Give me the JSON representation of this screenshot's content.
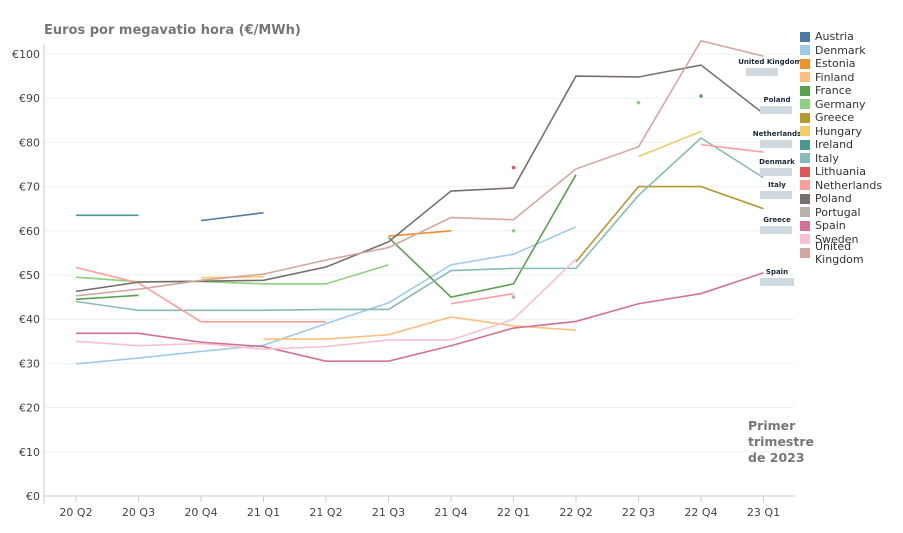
{
  "chart_data": {
    "type": "line",
    "title": "Euros por megavatio hora (€/MWh)",
    "xlabel": "",
    "ylabel": "",
    "categories": [
      "20 Q2",
      "20 Q3",
      "20 Q4",
      "21 Q1",
      "21 Q2",
      "21 Q3",
      "21 Q4",
      "22 Q1",
      "22 Q2",
      "22 Q3",
      "22 Q4",
      "23 Q1"
    ],
    "yticks": [
      "€0",
      "€10",
      "€20",
      "€30",
      "€40",
      "€50",
      "€60",
      "€70",
      "€80",
      "€90",
      "€100"
    ],
    "ylim": [
      0,
      100
    ],
    "grid": true,
    "legend_position": "right",
    "annotation": [
      "Primer",
      "trimestre",
      "de 2023"
    ],
    "series": [
      {
        "name": "Austria",
        "color": "#4e79a7",
        "values": [
          null,
          null,
          62.3,
          64.1,
          null,
          null,
          null,
          null,
          null,
          null,
          null,
          null
        ]
      },
      {
        "name": "Denmark",
        "color": "#a0cbe8",
        "values": [
          29.9,
          31.2,
          32.7,
          34.1,
          39,
          43.7,
          52.3,
          54.7,
          60.9,
          null,
          null,
          null
        ]
      },
      {
        "name": "Estonia",
        "color": "#f28e2b",
        "values": [
          null,
          null,
          null,
          null,
          null,
          58.8,
          60,
          null,
          null,
          null,
          null,
          null
        ]
      },
      {
        "name": "Finland",
        "color": "#ffbe7d",
        "values": [
          null,
          null,
          null,
          35.5,
          35.5,
          36.5,
          40.5,
          38.5,
          37.5,
          null,
          null,
          null
        ]
      },
      {
        "name": "France",
        "color": "#59a14f",
        "values": [
          44.5,
          45.4,
          null,
          null,
          null,
          58.5,
          45,
          48,
          72.7,
          null,
          90.5,
          null
        ]
      },
      {
        "name": "Germany",
        "color": "#8cd17d",
        "values": [
          49.5,
          48.5,
          48.5,
          48,
          48,
          52.3,
          null,
          60,
          null,
          89,
          null,
          null
        ]
      },
      {
        "name": "Greece",
        "color": "#b6992d",
        "values": [
          null,
          null,
          null,
          null,
          null,
          null,
          null,
          null,
          53,
          70,
          70,
          65
        ]
      },
      {
        "name": "Hungary",
        "color": "#f1ce63",
        "values": [
          null,
          null,
          49.4,
          49.6,
          null,
          null,
          null,
          null,
          null,
          76.8,
          82.5,
          null
        ]
      },
      {
        "name": "Ireland",
        "color": "#499894",
        "values": [
          63.5,
          63.5,
          null,
          null,
          null,
          null,
          null,
          null,
          null,
          null,
          null,
          null
        ]
      },
      {
        "name": "Italy",
        "color": "#86bcb6",
        "values": [
          44,
          42,
          42,
          42,
          42.2,
          42.2,
          51,
          51.5,
          51.5,
          68,
          81,
          72
        ]
      },
      {
        "name": "Lithuania",
        "color": "#e15759",
        "values": [
          null,
          null,
          null,
          null,
          null,
          null,
          null,
          74.3,
          null,
          null,
          null,
          null
        ]
      },
      {
        "name": "Netherlands",
        "color": "#ff9d9a",
        "values": [
          51.7,
          48.2,
          39.4,
          39.4,
          39.4,
          null,
          43.5,
          45.8,
          null,
          null,
          79.5,
          77.8
        ]
      },
      {
        "name": "Poland",
        "color": "#79706e",
        "values": [
          46.3,
          48.4,
          48.6,
          48.8,
          51.8,
          57.5,
          69,
          69.7,
          95,
          94.8,
          97.5,
          86.5
        ]
      },
      {
        "name": "Portugal",
        "color": "#bab0ac",
        "values": [
          null,
          null,
          null,
          null,
          null,
          null,
          null,
          45,
          null,
          null,
          null,
          null
        ]
      },
      {
        "name": "Spain",
        "color": "#d37295",
        "values": [
          36.8,
          36.8,
          34.8,
          33.8,
          30.5,
          30.5,
          34,
          38,
          39.5,
          43.5,
          45.8,
          50.5
        ]
      },
      {
        "name": "Sweden",
        "color": "#fabfd2",
        "values": [
          35,
          34,
          34.5,
          33.2,
          33.8,
          35.3,
          35.3,
          40,
          53.6,
          null,
          null,
          null
        ]
      },
      {
        "name": "United Kingdom",
        "color": "#d4a6a0",
        "values": [
          45.3,
          46.8,
          48.8,
          50.2,
          53.4,
          56.2,
          63,
          62.5,
          74,
          79,
          103,
          99.5
        ]
      }
    ],
    "end_labels": [
      "United Kingdom",
      "Poland",
      "Netherlands",
      "Denmark",
      "Italy",
      "Greece",
      "Spain"
    ]
  }
}
